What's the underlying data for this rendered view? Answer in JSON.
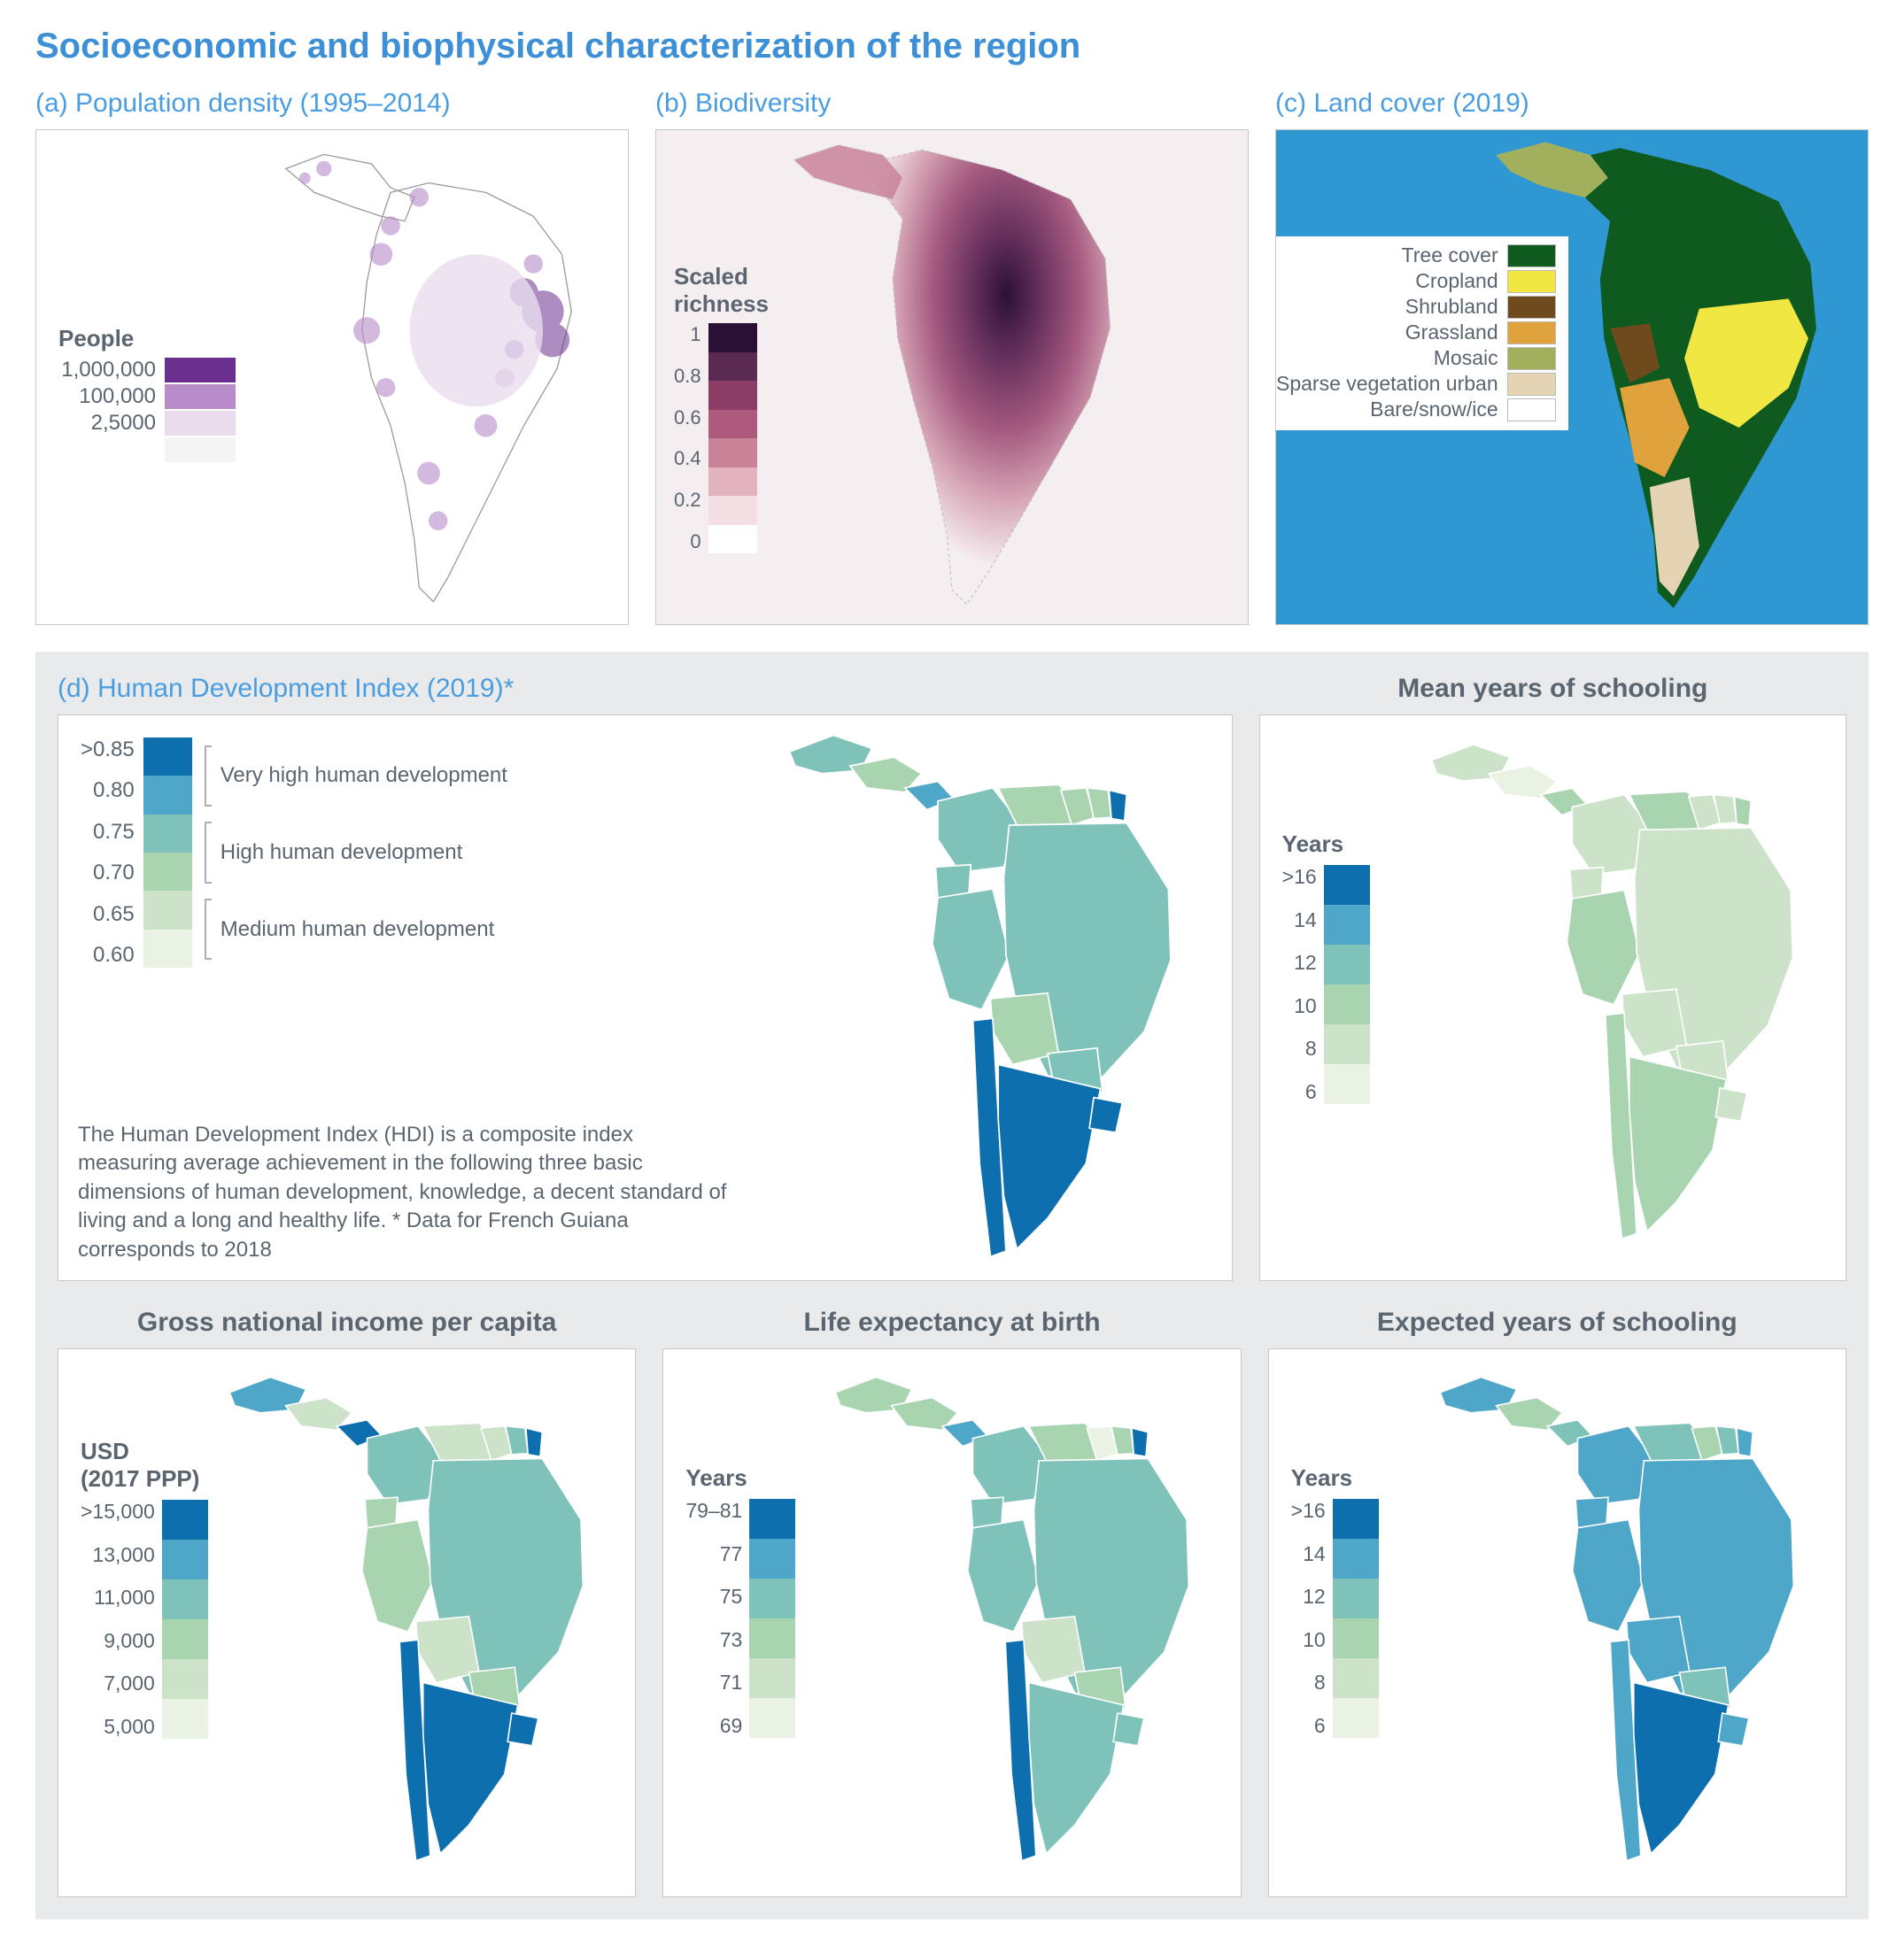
{
  "main_title": "Socioeconomic and biophysical characterization of the region",
  "panel_a": {
    "title": "(a) Population density (1995–2014)",
    "legend_title": "People",
    "scale": [
      {
        "label": "1,000,000",
        "color": "#6a2f8f"
      },
      {
        "label": "100,000",
        "color": "#b88bc9"
      },
      {
        "label": "2,5000",
        "color": "#e8dced"
      },
      {
        "label": "",
        "color": "#f4f4f4"
      }
    ],
    "background": "#ffffff",
    "map_outline": "#9a9a9a"
  },
  "panel_b": {
    "title": "(b) Biodiversity",
    "legend_title": "Scaled\nrichness",
    "ticks": [
      "1",
      "0.8",
      "0.6",
      "0.4",
      "0.2",
      "0"
    ],
    "colors": [
      "#2b1036",
      "#5a2a52",
      "#8a3d65",
      "#ae5a7c",
      "#c98399",
      "#e2b3bf",
      "#f3dfe4",
      "#ffffff"
    ],
    "background": "#f5eef1"
  },
  "panel_c": {
    "title": "(c) Land cover (2019)",
    "ocean_color": "#2f98d3",
    "categories": [
      {
        "label": "Tree cover",
        "color": "#0e5a1f"
      },
      {
        "label": "Cropland",
        "color": "#f0e743"
      },
      {
        "label": "Shrubland",
        "color": "#6e4a1d"
      },
      {
        "label": "Grassland",
        "color": "#e0a23c"
      },
      {
        "label": "Mosaic",
        "color": "#a2af5c"
      },
      {
        "label": "Sparse vegetation urban",
        "color": "#e5d4b4"
      },
      {
        "label": "Bare/snow/ice",
        "color": "#ffffff"
      }
    ]
  },
  "panel_d": {
    "title": "(d) Human Development Index (2019)*",
    "ticks": [
      ">0.85",
      "0.80",
      "0.75",
      "0.70",
      "0.65",
      "0.60"
    ],
    "colors": [
      "#0e6fae",
      "#4ea6c8",
      "#7fc2ba",
      "#a9d4b0",
      "#cde3c9",
      "#eaf2e4"
    ],
    "categories": [
      {
        "label": "Very high human development",
        "span": 2
      },
      {
        "label": "High human development",
        "span": 2
      },
      {
        "label": "Medium human development",
        "span": 2
      }
    ],
    "description": "The Human Development Index (HDI) is a composite index measuring average achievement in the following three basic dimensions of human development, knowledge, a decent standard of living and a long and healthy life. * Data for French Guiana corresponds to 2018"
  },
  "panel_schooling_mean": {
    "title": "Mean years of schooling",
    "legend_title": "Years",
    "ticks": [
      ">16",
      "14",
      "12",
      "10",
      "8",
      "6"
    ],
    "colors": [
      "#0e6fae",
      "#4ea6c8",
      "#7fc2ba",
      "#a9d4b0",
      "#cde3c9",
      "#eaf2e4"
    ]
  },
  "panel_gni": {
    "title": "Gross national income per capita",
    "legend_title": "USD\n(2017 PPP)",
    "ticks": [
      ">15,000",
      "13,000",
      "11,000",
      "9,000",
      "7,000",
      "5,000"
    ],
    "colors": [
      "#0e6fae",
      "#4ea6c8",
      "#7fc2ba",
      "#a9d4b0",
      "#cde3c9",
      "#eaf2e4"
    ]
  },
  "panel_life": {
    "title": "Life expectancy at birth",
    "legend_title": "Years",
    "ticks": [
      "79–81",
      "77",
      "75",
      "73",
      "71",
      "69"
    ],
    "colors": [
      "#0e6fae",
      "#4ea6c8",
      "#7fc2ba",
      "#a9d4b0",
      "#cde3c9",
      "#eaf2e4"
    ]
  },
  "panel_schooling_exp": {
    "title": "Expected years of schooling",
    "legend_title": "Years",
    "ticks": [
      ">16",
      "14",
      "12",
      "10",
      "8",
      "6"
    ],
    "colors": [
      "#0e6fae",
      "#4ea6c8",
      "#7fc2ba",
      "#a9d4b0",
      "#cde3c9",
      "#eaf2e4"
    ]
  },
  "sa_countries": {
    "brazil": {
      "color_hdi": "#7fc2ba",
      "color_school": "#cde3c9",
      "color_gni": "#7fc2ba",
      "color_life": "#7fc2ba",
      "color_expsch": "#4ea6c8"
    },
    "argentina": {
      "color_hdi": "#0e6fae",
      "color_school": "#a9d4b0",
      "color_gni": "#0e6fae",
      "color_life": "#7fc2ba",
      "color_expsch": "#0e6fae"
    },
    "chile": {
      "color_hdi": "#0e6fae",
      "color_school": "#a9d4b0",
      "color_gni": "#0e6fae",
      "color_life": "#0e6fae",
      "color_expsch": "#4ea6c8"
    },
    "peru": {
      "color_hdi": "#7fc2ba",
      "color_school": "#a9d4b0",
      "color_gni": "#a9d4b0",
      "color_life": "#7fc2ba",
      "color_expsch": "#4ea6c8"
    },
    "bolivia": {
      "color_hdi": "#a9d4b0",
      "color_school": "#cde3c9",
      "color_gni": "#cde3c9",
      "color_life": "#cde3c9",
      "color_expsch": "#4ea6c8"
    },
    "colombia": {
      "color_hdi": "#7fc2ba",
      "color_school": "#cde3c9",
      "color_gni": "#7fc2ba",
      "color_life": "#7fc2ba",
      "color_expsch": "#4ea6c8"
    },
    "venezuela": {
      "color_hdi": "#a9d4b0",
      "color_school": "#a9d4b0",
      "color_gni": "#cde3c9",
      "color_life": "#a9d4b0",
      "color_expsch": "#7fc2ba"
    },
    "uruguay": {
      "color_hdi": "#0e6fae",
      "color_school": "#cde3c9",
      "color_gni": "#0e6fae",
      "color_life": "#7fc2ba",
      "color_expsch": "#4ea6c8"
    },
    "paraguay": {
      "color_hdi": "#7fc2ba",
      "color_school": "#cde3c9",
      "color_gni": "#a9d4b0",
      "color_life": "#a9d4b0",
      "color_expsch": "#7fc2ba"
    },
    "ecuador": {
      "color_hdi": "#7fc2ba",
      "color_school": "#cde3c9",
      "color_gni": "#a9d4b0",
      "color_life": "#7fc2ba",
      "color_expsch": "#4ea6c8"
    },
    "guyana": {
      "color_hdi": "#a9d4b0",
      "color_school": "#cde3c9",
      "color_gni": "#cde3c9",
      "color_life": "#eaf2e4",
      "color_expsch": "#a9d4b0"
    },
    "suriname": {
      "color_hdi": "#a9d4b0",
      "color_school": "#cde3c9",
      "color_gni": "#7fc2ba",
      "color_life": "#a9d4b0",
      "color_expsch": "#7fc2ba"
    },
    "frguiana": {
      "color_hdi": "#0e6fae",
      "color_school": "#a9d4b0",
      "color_gni": "#0e6fae",
      "color_life": "#0e6fae",
      "color_expsch": "#4ea6c8"
    },
    "ca": {
      "color_hdi": "#a9d4b0",
      "color_school": "#eaf2e4",
      "color_gni": "#cde3c9",
      "color_life": "#a9d4b0",
      "color_expsch": "#a9d4b0"
    },
    "panama": {
      "color_hdi": "#4ea6c8",
      "color_school": "#a9d4b0",
      "color_gni": "#0e6fae",
      "color_life": "#4ea6c8",
      "color_expsch": "#7fc2ba"
    },
    "mexico_tip": {
      "color_hdi": "#7fc2ba",
      "color_school": "#cde3c9",
      "color_gni": "#4ea6c8",
      "color_life": "#a9d4b0",
      "color_expsch": "#4ea6c8"
    }
  }
}
